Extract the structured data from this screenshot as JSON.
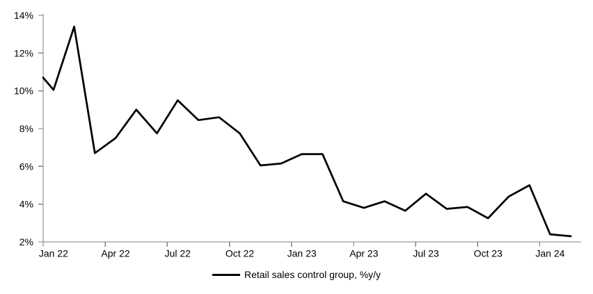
{
  "chart_data": {
    "type": "line",
    "title": "",
    "background": "#ffffff",
    "axis_color": "#808080",
    "text_color": "#000000",
    "grid": false,
    "ylim": [
      2,
      14
    ],
    "categories": [
      "Jan 22",
      "Feb 22",
      "Mar 22",
      "Apr 22",
      "May 22",
      "Jun 22",
      "Jul 22",
      "Aug 22",
      "Sep 22",
      "Oct 22",
      "Nov 22",
      "Dec 22",
      "Jan 23",
      "Feb 23",
      "Mar 23",
      "Apr 23",
      "May 23",
      "Jun 23",
      "Jul 23",
      "Aug 23",
      "Sep 23",
      "Oct 23",
      "Nov 23",
      "Dec 23",
      "Jan 24",
      "Feb 24"
    ],
    "series": [
      {
        "name": "Retail sales control group, %y/y",
        "color": "#000000",
        "values": [
          10.05,
          13.4,
          6.7,
          7.5,
          9.0,
          7.75,
          9.5,
          8.45,
          8.6,
          7.75,
          6.05,
          6.15,
          6.65,
          6.65,
          4.15,
          3.8,
          4.15,
          3.65,
          4.55,
          3.75,
          3.85,
          3.25,
          4.4,
          5.0,
          2.4,
          2.3
        ],
        "visible_line_start_value_at_left_edge": 10.7
      }
    ],
    "y_ticks": [
      {
        "value": 14,
        "label": "14%"
      },
      {
        "value": 12,
        "label": "12%"
      },
      {
        "value": 10,
        "label": "10%"
      },
      {
        "value": 8,
        "label": "8%"
      },
      {
        "value": 6,
        "label": "6%"
      },
      {
        "value": 4,
        "label": "4%"
      },
      {
        "value": 2,
        "label": "2%"
      }
    ],
    "x_ticks": [
      {
        "month_index": 0,
        "label": "Jan 22"
      },
      {
        "month_index": 3,
        "label": "Apr 22"
      },
      {
        "month_index": 6,
        "label": "Jul 22"
      },
      {
        "month_index": 9,
        "label": "Oct 22"
      },
      {
        "month_index": 12,
        "label": "Jan 23"
      },
      {
        "month_index": 15,
        "label": "Apr 23"
      },
      {
        "month_index": 18,
        "label": "Jul 23"
      },
      {
        "month_index": 21,
        "label": "Oct 23"
      },
      {
        "month_index": 24,
        "label": "Jan 24"
      }
    ],
    "legend": {
      "position": "bottom-center",
      "entries": [
        {
          "label": "Retail sales control group, %y/y",
          "swatch": "line",
          "color": "#000000"
        }
      ]
    }
  }
}
